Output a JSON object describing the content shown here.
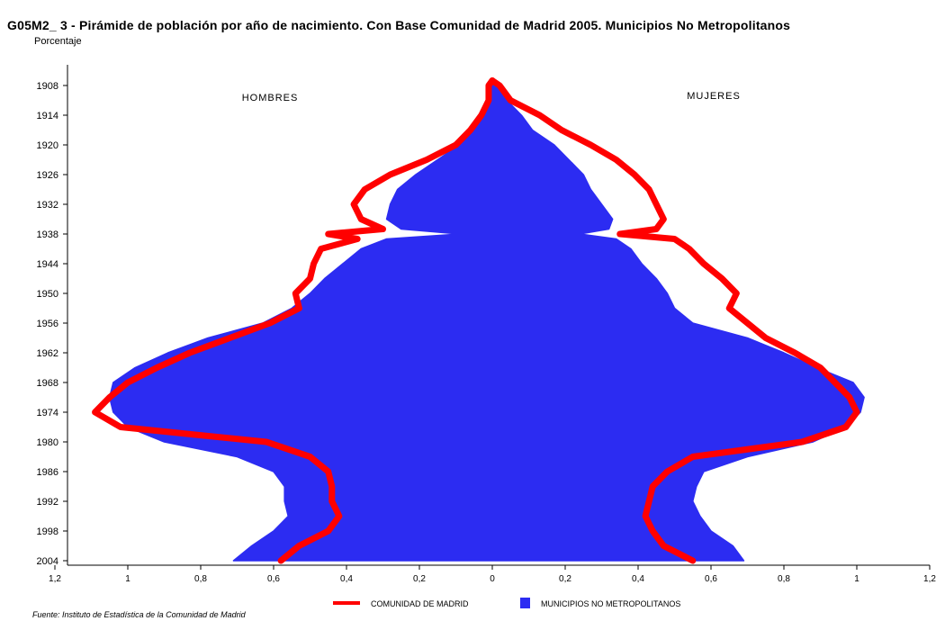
{
  "title": "G05M2_ 3 - Pirámide de población por año de nacimiento. Con Base Comunidad de Madrid   2005.  Municipios No Metropolitanos",
  "unit_label": "Porcentaje",
  "source": "Fuente: Instituto de Estadística de la Comunidad de Madrid",
  "chart_data": {
    "type": "area",
    "orientation": "horizontal-pyramid",
    "left_label": "HOMBRES",
    "right_label": "MUJERES",
    "y_ticks": [
      "1908",
      "1914",
      "1920",
      "1926",
      "1932",
      "1938",
      "1944",
      "1950",
      "1956",
      "1962",
      "1968",
      "1974",
      "1980",
      "1986",
      "1992",
      "1998",
      "2004"
    ],
    "y_range": [
      1907,
      2004
    ],
    "x_ticks_left": [
      "1,2",
      "1",
      "0,8",
      "0,6",
      "0,4",
      "0,2",
      "0"
    ],
    "x_ticks_right": [
      "0,2",
      "0,4",
      "0,6",
      "0,8",
      "1",
      "1,2"
    ],
    "x_range": [
      -1.2,
      1.2
    ],
    "years": [
      1907,
      1908,
      1911,
      1914,
      1917,
      1920,
      1923,
      1926,
      1929,
      1932,
      1935,
      1937,
      1938,
      1939,
      1941,
      1944,
      1947,
      1950,
      1953,
      1956,
      1959,
      1962,
      1965,
      1968,
      1971,
      1974,
      1977,
      1980,
      1983,
      1986,
      1989,
      1992,
      1995,
      1998,
      2001,
      2004
    ],
    "series": [
      {
        "name": "MUNICIPIOS NO METROPOLITANOS",
        "color": "#2c2cf2",
        "hombres": [
          0.0,
          0.0,
          0.01,
          0.02,
          0.05,
          0.09,
          0.15,
          0.21,
          0.26,
          0.28,
          0.29,
          0.25,
          0.09,
          0.29,
          0.36,
          0.41,
          0.46,
          0.5,
          0.55,
          0.63,
          0.78,
          0.89,
          0.98,
          1.04,
          1.05,
          1.04,
          1.0,
          0.9,
          0.7,
          0.6,
          0.57,
          0.57,
          0.56,
          0.6,
          0.66,
          0.71
        ],
        "mujeres": [
          0.0,
          0.01,
          0.04,
          0.08,
          0.11,
          0.17,
          0.21,
          0.25,
          0.27,
          0.3,
          0.33,
          0.32,
          0.24,
          0.34,
          0.38,
          0.41,
          0.45,
          0.48,
          0.5,
          0.55,
          0.7,
          0.8,
          0.89,
          0.99,
          1.02,
          1.01,
          0.97,
          0.88,
          0.7,
          0.58,
          0.56,
          0.55,
          0.57,
          0.6,
          0.66,
          0.69
        ]
      },
      {
        "name": "COMUNIDAD DE MADRID",
        "color": "#ff0000",
        "hombres": [
          0.0,
          0.01,
          0.01,
          0.03,
          0.06,
          0.1,
          0.18,
          0.28,
          0.35,
          0.38,
          0.36,
          0.3,
          0.45,
          0.37,
          0.47,
          0.49,
          0.5,
          0.54,
          0.53,
          0.61,
          0.72,
          0.83,
          0.92,
          1.0,
          1.05,
          1.09,
          1.02,
          0.62,
          0.5,
          0.45,
          0.44,
          0.44,
          0.42,
          0.45,
          0.53,
          0.58
        ],
        "mujeres": [
          0.0,
          0.02,
          0.05,
          0.13,
          0.19,
          0.27,
          0.34,
          0.39,
          0.43,
          0.45,
          0.47,
          0.45,
          0.35,
          0.5,
          0.54,
          0.58,
          0.63,
          0.67,
          0.65,
          0.7,
          0.75,
          0.83,
          0.9,
          0.94,
          0.98,
          1.0,
          0.97,
          0.85,
          0.55,
          0.48,
          0.44,
          0.43,
          0.42,
          0.44,
          0.47,
          0.55
        ]
      }
    ],
    "legend": [
      "COMUNIDAD DE MADRID",
      "MUNICIPIOS NO METROPOLITANOS"
    ],
    "legend_position": "bottom"
  }
}
